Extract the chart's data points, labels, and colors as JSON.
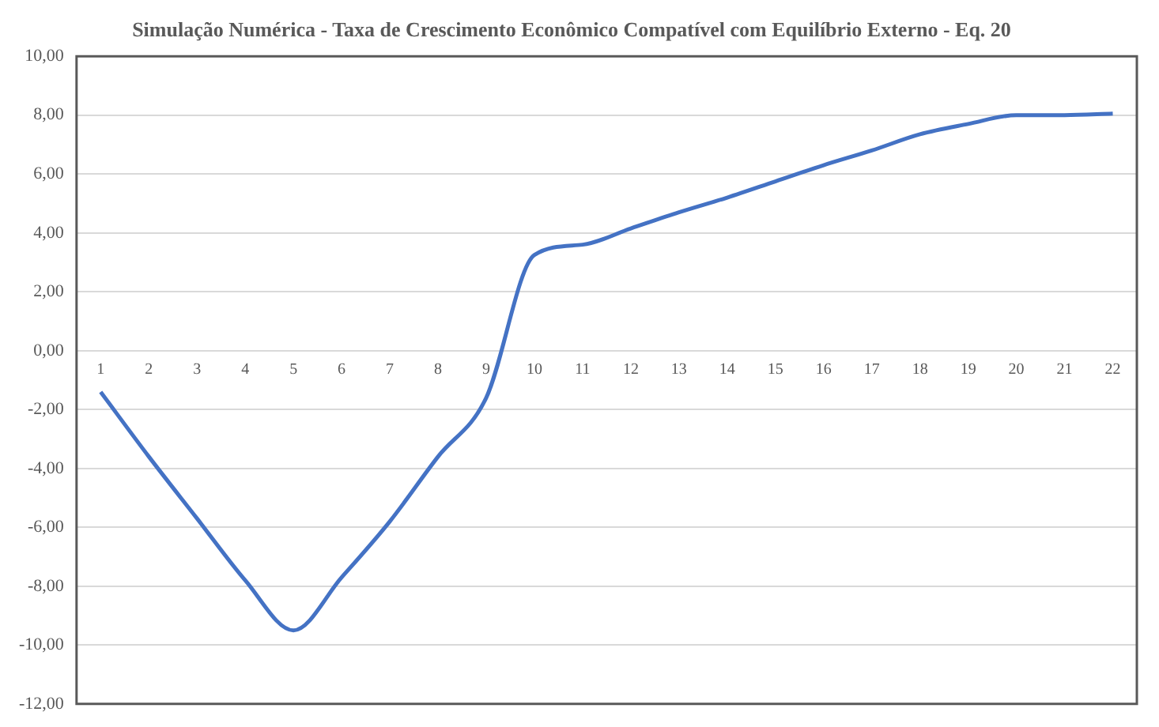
{
  "chart_data": {
    "type": "line",
    "title": "Simulação Numérica - Taxa de Crescimento Econômico Compatível com Equilíbrio Externo - Eq. 20",
    "categories": [
      "1",
      "2",
      "3",
      "4",
      "5",
      "6",
      "7",
      "8",
      "9",
      "10",
      "11",
      "12",
      "13",
      "14",
      "15",
      "16",
      "17",
      "18",
      "19",
      "20",
      "21",
      "22"
    ],
    "series": [
      {
        "color": "#4472c4",
        "values": [
          -1.4,
          -3.6,
          -5.7,
          -7.8,
          -9.5,
          -7.7,
          -5.8,
          -3.6,
          -1.6,
          3.25,
          3.6,
          4.15,
          4.7,
          5.2,
          5.75,
          6.3,
          6.8,
          7.35,
          7.7,
          8.0,
          8.0,
          8.05
        ]
      }
    ],
    "ylim": [
      -12,
      10
    ],
    "yticks": [
      {
        "value": -12,
        "label": "-12,00"
      },
      {
        "value": -10,
        "label": "-10,00"
      },
      {
        "value": -8,
        "label": "-8,00"
      },
      {
        "value": -6,
        "label": "-6,00"
      },
      {
        "value": -4,
        "label": "-4,00"
      },
      {
        "value": -2,
        "label": "-2,00"
      },
      {
        "value": 0,
        "label": "0,00"
      },
      {
        "value": 2,
        "label": "2,00"
      },
      {
        "value": 4,
        "label": "4,00"
      },
      {
        "value": 6,
        "label": "6,00"
      },
      {
        "value": 8,
        "label": "8,00"
      },
      {
        "value": 10,
        "label": "10,00"
      }
    ],
    "grid": "y",
    "legend": false,
    "marker": "none",
    "line_style": "solid"
  }
}
